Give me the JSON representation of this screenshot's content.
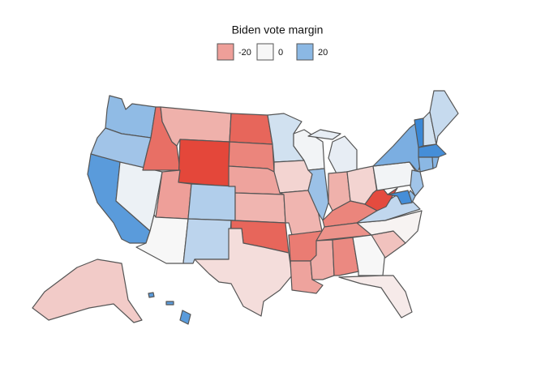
{
  "chart_data": {
    "type": "choropleth",
    "legend": {
      "title": "Biden vote margin",
      "ticks": [
        -20,
        0,
        20
      ]
    },
    "color_scale": {
      "low": "#e4473a",
      "mid": "#f7f7f7",
      "high": "#1f78d1",
      "limits": [
        -40,
        40
      ]
    },
    "values": [
      19,
      16,
      29,
      2,
      -31,
      -16,
      -43,
      -20,
      0,
      13,
      11,
      -33,
      -26,
      -19,
      -15,
      -33,
      -6,
      7,
      -8,
      -15,
      -28,
      -19,
      1,
      17,
      3,
      -16,
      -8,
      -26,
      -23,
      -17,
      -25,
      0,
      -3,
      -12,
      -1,
      10,
      -39,
      1,
      23,
      35,
      7,
      9,
      33,
      20,
      21,
      16,
      19,
      33,
      -10,
      29
    ]
  }
}
